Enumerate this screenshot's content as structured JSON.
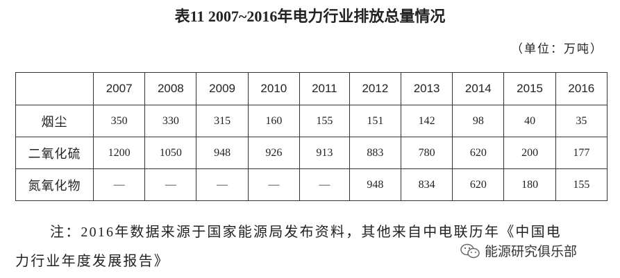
{
  "header": {
    "title": "表11  2007~2016年电力行业排放总量情况",
    "unit": "（单位：万吨）"
  },
  "table": {
    "columns": [
      2007,
      2008,
      2009,
      2010,
      2011,
      2012,
      2013,
      2014,
      2015,
      2016
    ],
    "rows": [
      {
        "name": "烟尘",
        "values": [
          350,
          330,
          315,
          160,
          155,
          151,
          142,
          98,
          40,
          35
        ]
      },
      {
        "name": "二氧化硫",
        "values": [
          1200,
          1050,
          948,
          926,
          913,
          883,
          780,
          620,
          200,
          177
        ]
      },
      {
        "name": "氮氧化物",
        "values": [
          "—",
          "—",
          "—",
          "—",
          "—",
          948,
          834,
          620,
          180,
          155
        ]
      }
    ]
  },
  "note": {
    "lines": [
      "注：2016年数据来源于国家能源局发布资料，其他来自中电联历年《中国电",
      "力行业年度发展报告》"
    ]
  },
  "watermark": "能源研究俱乐部"
}
